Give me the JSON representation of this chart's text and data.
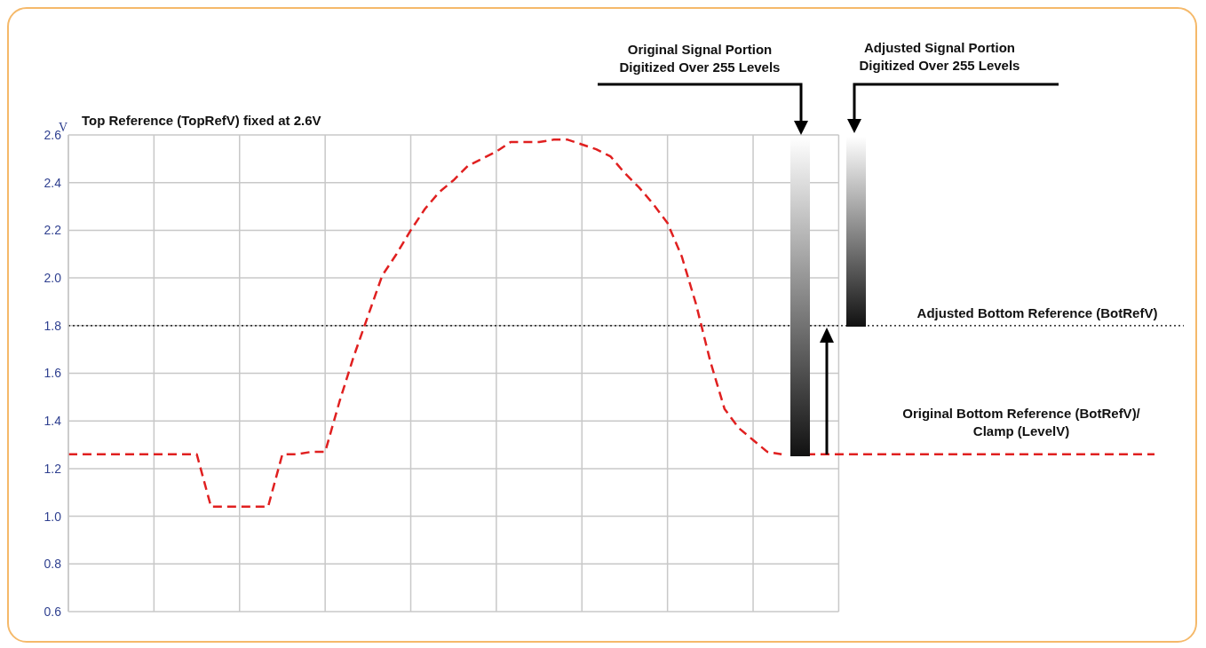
{
  "chart_data": {
    "type": "line",
    "ylabel": "V",
    "categories": [
      null,
      null,
      null,
      null,
      null,
      null,
      null,
      null,
      null,
      null,
      null,
      null,
      null,
      null,
      null,
      null,
      null,
      null,
      null,
      null,
      null,
      null,
      null,
      null,
      null,
      null,
      null,
      null,
      null,
      null,
      null,
      null,
      null,
      null,
      null,
      null,
      null,
      null,
      null,
      null,
      null,
      null,
      null,
      null,
      null,
      null,
      null,
      null,
      null,
      null,
      null,
      null,
      null,
      null,
      null
    ],
    "series": [
      {
        "color": "#e02020",
        "values": [
          1.26,
          1.26,
          1.26,
          1.26,
          1.26,
          1.26,
          1.26,
          1.26,
          1.26,
          1.26,
          1.04,
          1.04,
          1.04,
          1.04,
          1.04,
          1.26,
          1.26,
          1.27,
          1.27,
          1.48,
          1.67,
          1.84,
          2.01,
          2.1,
          2.2,
          2.29,
          2.36,
          2.41,
          2.47,
          2.5,
          2.53,
          2.57,
          2.57,
          2.57,
          2.58,
          2.58,
          2.56,
          2.54,
          2.51,
          2.44,
          2.38,
          2.31,
          2.23,
          2.09,
          1.89,
          1.65,
          1.45,
          1.37,
          1.32,
          1.27,
          1.26,
          null,
          null,
          null,
          null
        ]
      }
    ],
    "line_style": "dashed",
    "marker": "none",
    "ylim": [
      0.6,
      2.6
    ],
    "yticks": [
      0.6,
      0.8,
      {
        "value": 1,
        "label": "1.0"
      },
      1.2,
      1.4,
      1.6,
      1.8,
      {
        "value": 2,
        "label": "2.0"
      },
      2.2,
      2.4,
      2.6
    ],
    "tick_labels": "y",
    "grid": true,
    "ref_lines": [
      {
        "axis": "y",
        "value": 1.8,
        "label": "Adjusted Bottom Reference (BotRefV)",
        "color": "#000000",
        "line_style": "dotted"
      },
      {
        "axis": "y",
        "value": 1.26,
        "label": "Original Bottom Reference (BotRefV)/\nClamp (LevelV)",
        "color": "#e02020",
        "line_style": "dashed"
      }
    ],
    "annotations": [
      "Top Reference (TopRefV) fixed at 2.6V",
      "Original Signal Portion\nDigitized Over 255 Levels",
      "Adjusted Signal Portion\nDigitized Over 255 Levels"
    ]
  }
}
